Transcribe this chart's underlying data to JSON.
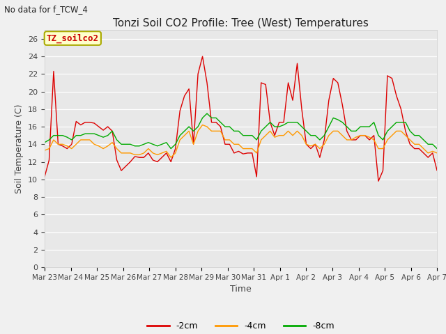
{
  "title": "Tonzi Soil CO2 Profile: Tree (West) Temperatures",
  "subtitle": "No data for f_TCW_4",
  "xlabel": "Time",
  "ylabel": "Soil Temperature (C)",
  "ylim": [
    0,
    27
  ],
  "yticks": [
    0,
    2,
    4,
    6,
    8,
    10,
    12,
    14,
    16,
    18,
    20,
    22,
    24,
    26
  ],
  "legend_label": "TZ_soilco2",
  "legend_bg": "#ffffcc",
  "legend_border": "#aaaa00",
  "series_labels": [
    "-2cm",
    "-4cm",
    "-8cm"
  ],
  "series_colors": [
    "#dd0000",
    "#ff9900",
    "#00aa00"
  ],
  "fig_bg": "#f0f0f0",
  "plot_bg": "#e8e8e8",
  "x_tick_labels": [
    "Mar 23",
    "Mar 24",
    "Mar 25",
    "Mar 26",
    "Mar 27",
    "Mar 28",
    "Mar 29",
    "Mar 30",
    "Mar 31",
    "Apr 1",
    "Apr 2",
    "Apr 3",
    "Apr 4",
    "Apr 5",
    "Apr 6",
    "Apr 7"
  ],
  "x_tick_positions": [
    0,
    1,
    2,
    3,
    4,
    5,
    6,
    7,
    8,
    9,
    10,
    11,
    12,
    13,
    14,
    15
  ],
  "line2cm": [
    10.3,
    12.2,
    22.3,
    14.0,
    13.8,
    13.5,
    14.0,
    16.6,
    16.2,
    16.5,
    16.5,
    16.4,
    16.0,
    15.6,
    16.0,
    15.5,
    12.2,
    11.0,
    11.5,
    12.0,
    12.6,
    12.5,
    12.5,
    13.0,
    12.2,
    12.0,
    12.5,
    13.0,
    12.0,
    13.5,
    17.8,
    19.5,
    20.3,
    14.0,
    22.0,
    24.0,
    21.0,
    16.5,
    16.5,
    16.0,
    14.0,
    14.0,
    13.0,
    13.2,
    12.9,
    13.0,
    13.0,
    10.3,
    21.0,
    20.8,
    16.5,
    15.0,
    16.5,
    16.5,
    21.0,
    19.0,
    23.2,
    18.0,
    14.0,
    13.5,
    14.0,
    12.5,
    14.5,
    19.0,
    21.5,
    21.0,
    18.5,
    15.5,
    14.5,
    14.5,
    15.0,
    15.0,
    14.5,
    15.0,
    9.8,
    11.0,
    21.8,
    21.5,
    19.5,
    18.0,
    15.5,
    14.0,
    13.5,
    13.5,
    13.0,
    12.5,
    13.0,
    11.0
  ],
  "line4cm": [
    13.3,
    13.5,
    14.5,
    14.0,
    14.0,
    13.8,
    13.5,
    14.0,
    14.5,
    14.5,
    14.5,
    14.0,
    13.8,
    13.5,
    13.8,
    14.2,
    13.5,
    13.0,
    13.0,
    13.0,
    12.8,
    12.8,
    13.0,
    13.5,
    13.0,
    12.8,
    13.0,
    13.2,
    12.5,
    13.0,
    14.5,
    15.0,
    15.5,
    14.0,
    15.5,
    16.2,
    16.0,
    15.5,
    15.5,
    15.5,
    14.5,
    14.5,
    14.0,
    14.0,
    13.5,
    13.5,
    13.5,
    13.0,
    14.5,
    15.0,
    15.5,
    14.8,
    15.0,
    15.0,
    15.5,
    15.0,
    15.5,
    15.0,
    14.0,
    13.8,
    14.0,
    13.5,
    14.0,
    15.0,
    15.5,
    15.5,
    15.0,
    14.5,
    14.5,
    14.8,
    15.0,
    15.0,
    14.8,
    14.5,
    13.5,
    13.5,
    14.5,
    15.0,
    15.5,
    15.5,
    15.0,
    14.5,
    14.0,
    14.0,
    13.5,
    13.0,
    13.2,
    13.0
  ],
  "line8cm": [
    14.2,
    14.5,
    15.0,
    15.0,
    15.0,
    14.8,
    14.5,
    15.0,
    15.0,
    15.2,
    15.2,
    15.2,
    15.0,
    14.8,
    15.0,
    15.5,
    14.5,
    14.0,
    14.0,
    14.0,
    13.8,
    13.8,
    14.0,
    14.2,
    14.0,
    13.8,
    14.0,
    14.2,
    13.5,
    14.0,
    15.0,
    15.5,
    16.0,
    15.5,
    16.0,
    17.0,
    17.5,
    17.0,
    17.0,
    16.5,
    16.0,
    16.0,
    15.5,
    15.5,
    15.0,
    15.0,
    15.0,
    14.5,
    15.5,
    16.0,
    16.5,
    16.0,
    16.0,
    16.2,
    16.5,
    16.5,
    16.5,
    16.0,
    15.5,
    15.0,
    15.0,
    14.5,
    15.0,
    16.0,
    17.0,
    16.8,
    16.5,
    16.0,
    15.5,
    15.5,
    16.0,
    16.0,
    16.0,
    16.5,
    15.0,
    14.5,
    15.5,
    16.0,
    16.5,
    16.5,
    16.5,
    15.5,
    15.0,
    15.0,
    14.5,
    14.0,
    14.0,
    13.5
  ]
}
